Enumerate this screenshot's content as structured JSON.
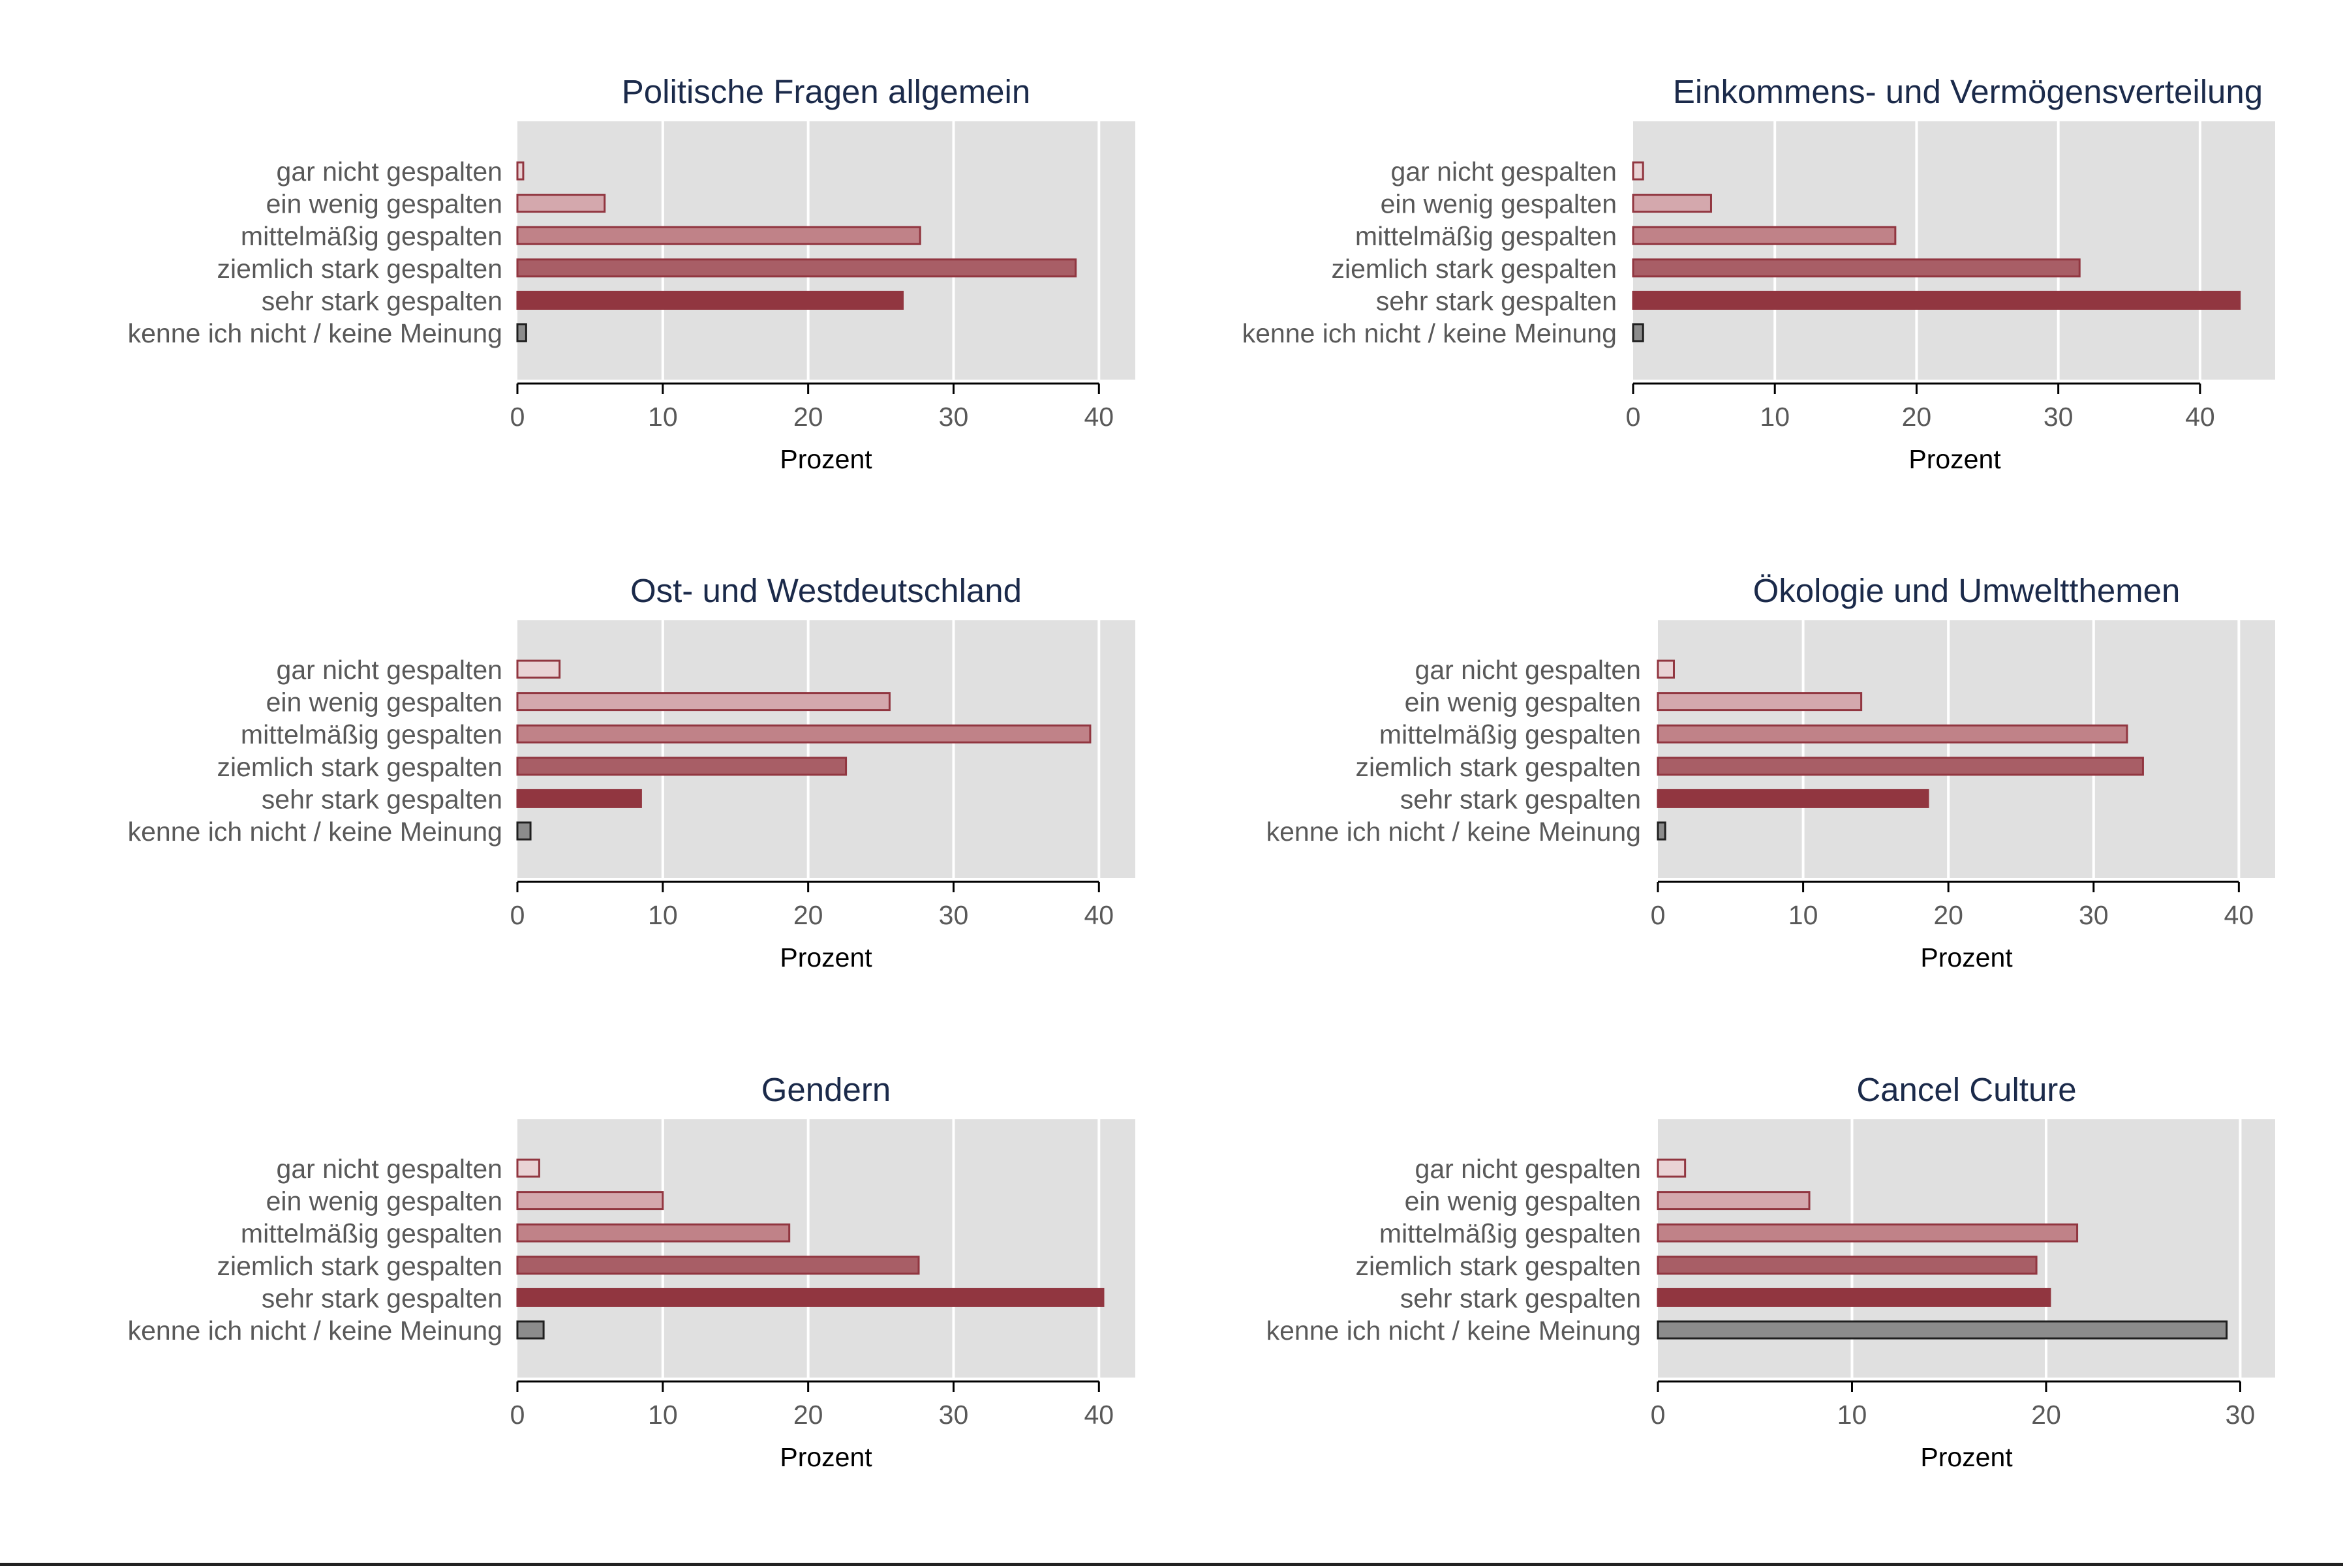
{
  "colors": {
    "gar_nicht": "#e9d3d5",
    "ein_wenig": "#d4a8ad",
    "mittel": "#c08288",
    "ziemlich": "#a85e66",
    "sehr": "#913640",
    "kenne": "#8c8c8c",
    "outline_red": "#913640",
    "outline_gray": "#1f1f1f",
    "panel_bg": "#e0e0e0",
    "title": "#1b2a4a",
    "category_text": "#595959",
    "tick_text": "#595959",
    "axis_label": "#000000"
  },
  "categories": [
    "gar nicht gespalten",
    "ein wenig gespalten",
    "mittelmäßig gespalten",
    "ziemlich stark gespalten",
    "sehr stark gespalten",
    "kenne ich nicht / keine Meinung"
  ],
  "chart_data": [
    {
      "type": "bar",
      "title": "Politische Fragen allgemein",
      "xlabel": "Prozent",
      "categories": [
        "gar nicht gespalten",
        "ein wenig gespalten",
        "mittelmäßig gespalten",
        "ziemlich stark gespalten",
        "sehr stark gespalten",
        "kenne ich nicht / keine Meinung"
      ],
      "values": [
        0.4,
        6.0,
        27.7,
        38.4,
        26.5,
        0.6
      ],
      "xlim": [
        0,
        42.5
      ],
      "ticks": [
        0,
        10,
        20,
        30,
        40
      ],
      "grid": true
    },
    {
      "type": "bar",
      "title": "Einkommens- und Vermögensverteilung",
      "xlabel": "Prozent",
      "categories": [
        "gar nicht gespalten",
        "ein wenig gespalten",
        "mittelmäßig gespalten",
        "ziemlich stark gespalten",
        "sehr stark gespalten",
        "kenne ich nicht / keine Meinung"
      ],
      "values": [
        0.7,
        5.5,
        18.5,
        31.5,
        42.8,
        0.7
      ],
      "xlim": [
        0,
        45.3
      ],
      "ticks": [
        0,
        10,
        20,
        30,
        40
      ],
      "grid": true
    },
    {
      "type": "bar",
      "title": "Ost- und Westdeutschland",
      "xlabel": "Prozent",
      "categories": [
        "gar nicht gespalten",
        "ein wenig gespalten",
        "mittelmäßig gespalten",
        "ziemlich stark gespalten",
        "sehr stark gespalten",
        "kenne ich nicht / keine Meinung"
      ],
      "values": [
        2.9,
        25.6,
        39.4,
        22.6,
        8.5,
        0.9
      ],
      "xlim": [
        0,
        42.5
      ],
      "ticks": [
        0,
        10,
        20,
        30,
        40
      ],
      "grid": true
    },
    {
      "type": "bar",
      "title": "Ökologie und Umweltthemen",
      "xlabel": "Prozent",
      "categories": [
        "gar nicht gespalten",
        "ein wenig gespalten",
        "mittelmäßig gespalten",
        "ziemlich stark gespalten",
        "sehr stark gespalten",
        "kenne ich nicht / keine Meinung"
      ],
      "values": [
        1.1,
        14.0,
        32.3,
        33.4,
        18.6,
        0.5
      ],
      "xlim": [
        0,
        42.5
      ],
      "ticks": [
        0,
        10,
        20,
        30,
        40
      ],
      "grid": true
    },
    {
      "type": "bar",
      "title": "Gendern",
      "xlabel": "Prozent",
      "categories": [
        "gar nicht gespalten",
        "ein wenig gespalten",
        "mittelmäßig gespalten",
        "ziemlich stark gespalten",
        "sehr stark gespalten",
        "kenne ich nicht / keine Meinung"
      ],
      "values": [
        1.5,
        10.0,
        18.7,
        27.6,
        40.3,
        1.8
      ],
      "xlim": [
        0,
        42.5
      ],
      "ticks": [
        0,
        10,
        20,
        30,
        40
      ],
      "grid": true
    },
    {
      "type": "bar",
      "title": "Cancel Culture",
      "xlabel": "Prozent",
      "categories": [
        "gar nicht gespalten",
        "ein wenig gespalten",
        "mittelmäßig gespalten",
        "ziemlich stark gespalten",
        "sehr stark gespalten",
        "kenne ich nicht / keine Meinung"
      ],
      "values": [
        1.4,
        7.8,
        21.6,
        19.5,
        20.2,
        29.3
      ],
      "xlim": [
        0,
        31.8
      ],
      "ticks": [
        0,
        10,
        20,
        30
      ],
      "grid": true
    }
  ]
}
